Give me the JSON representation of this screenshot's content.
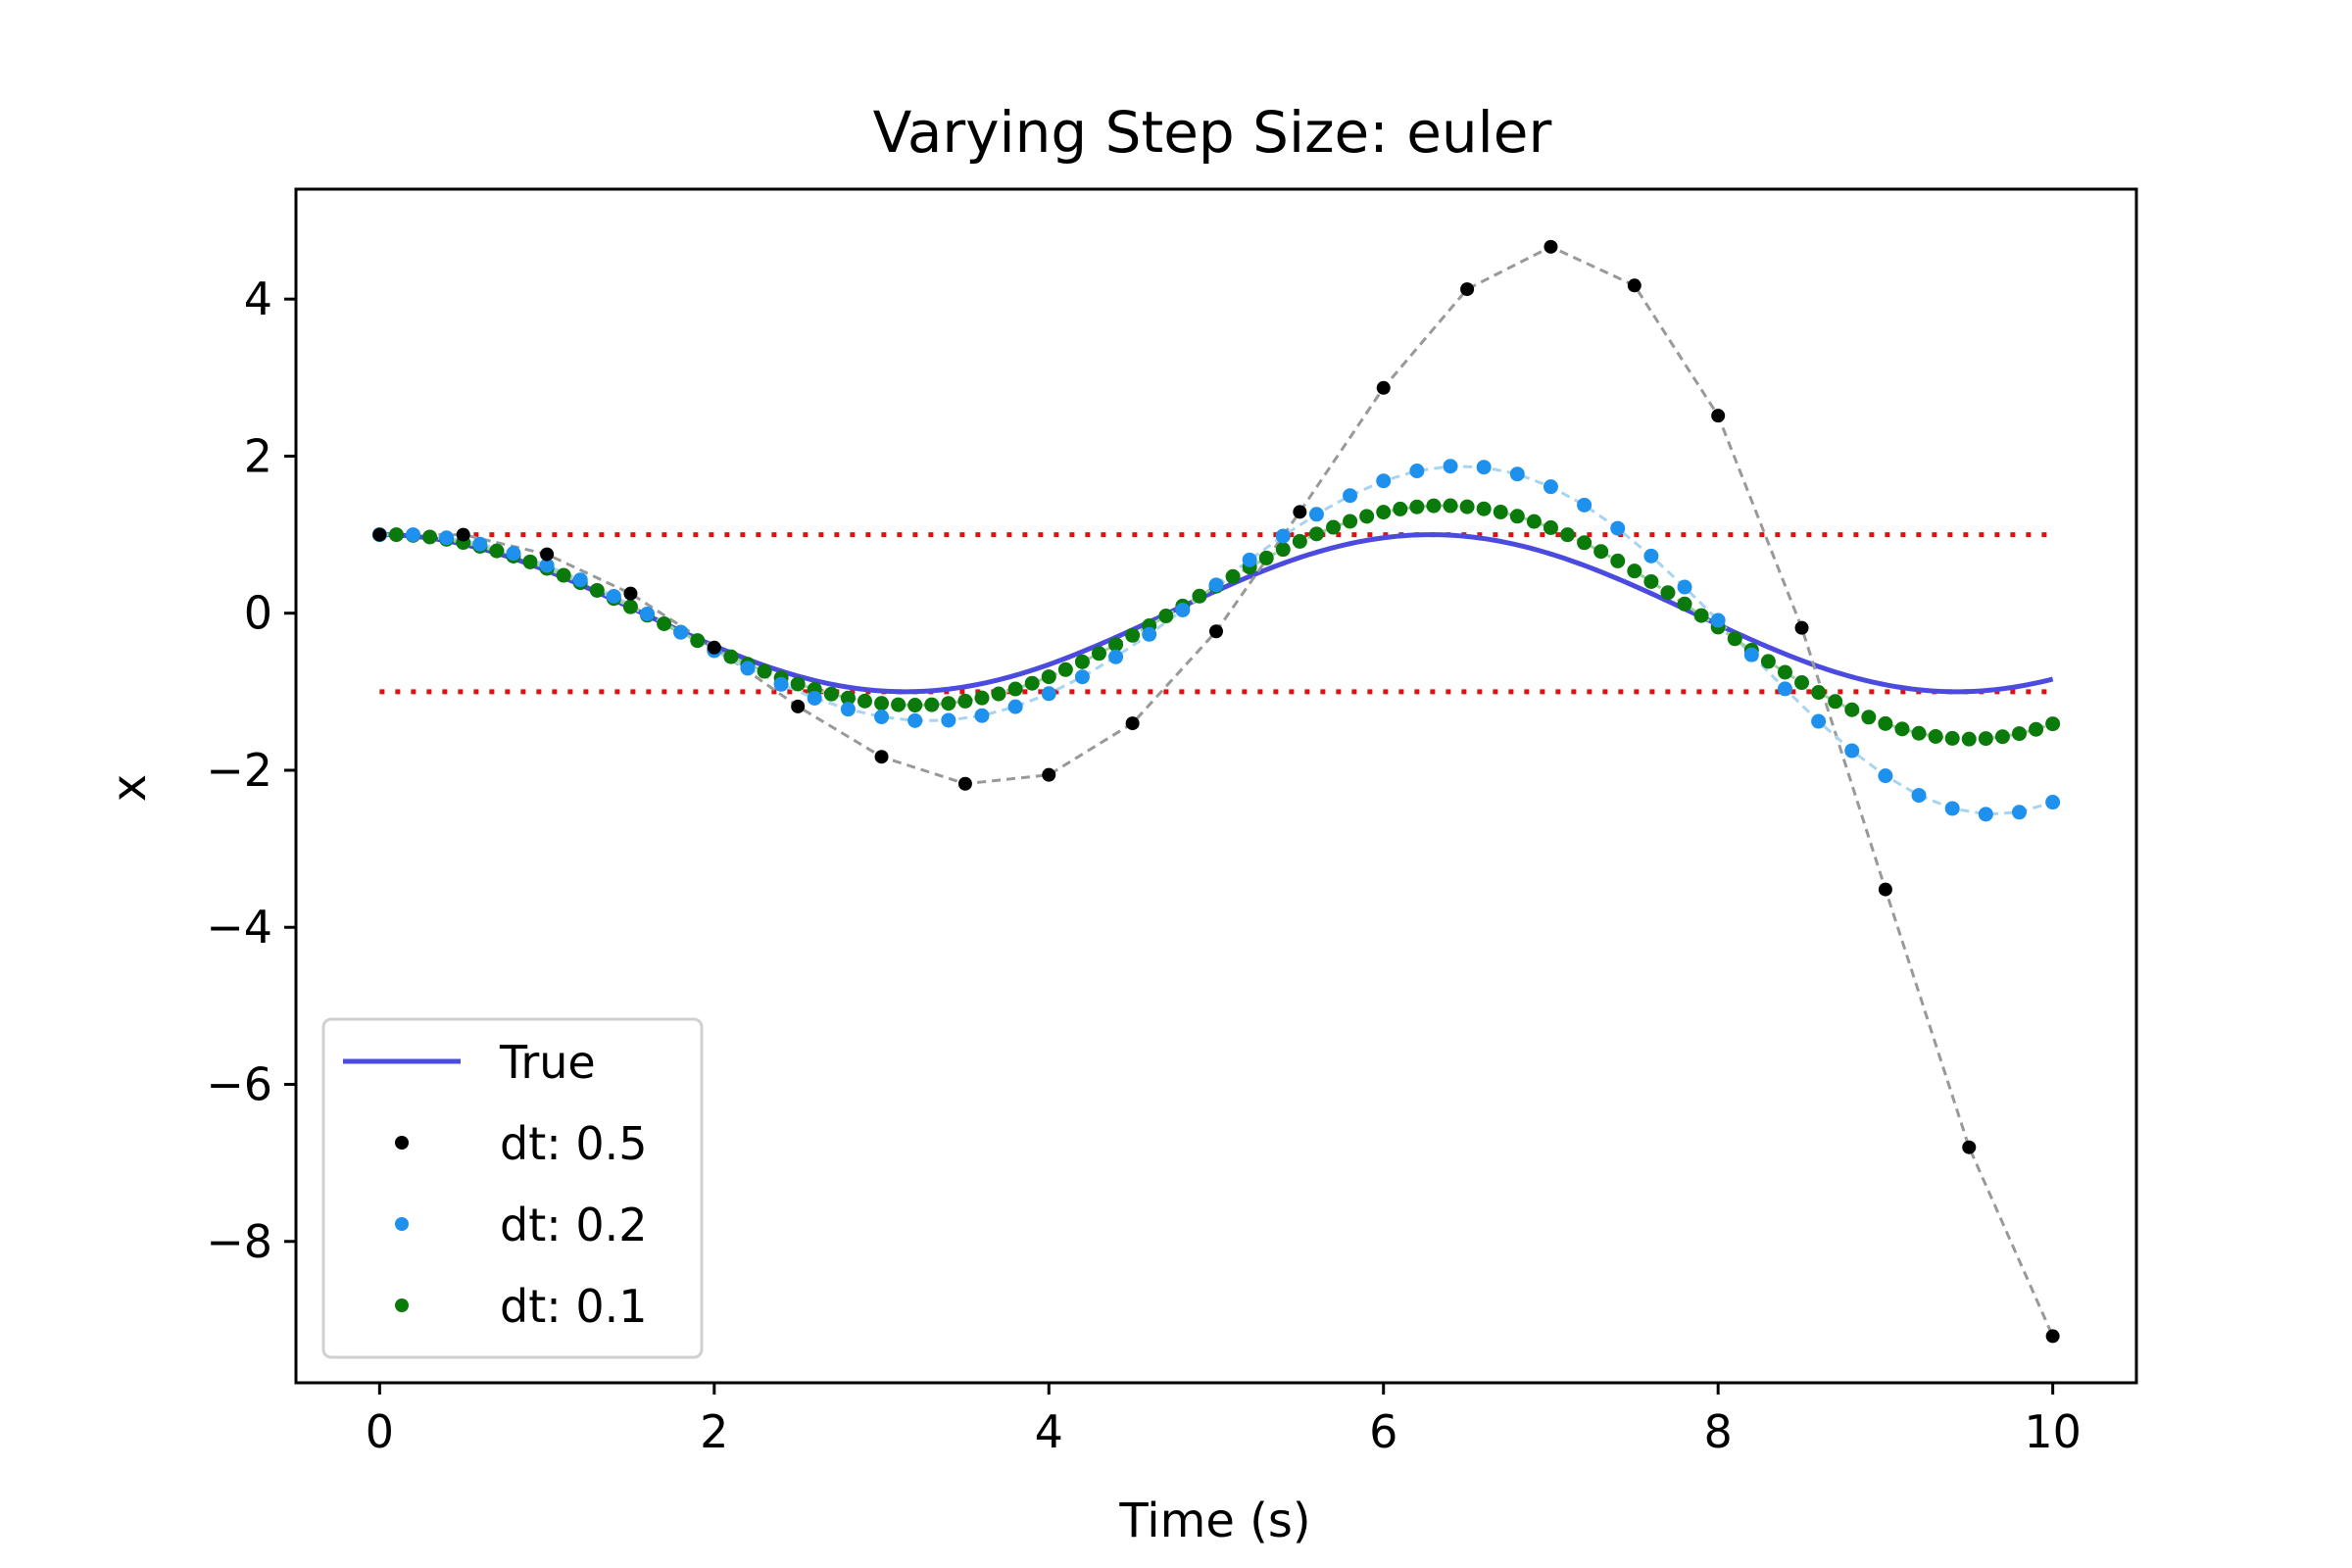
{
  "chart_data": {
    "type": "line",
    "title": "Varying Step Size: euler",
    "xlabel": "Time (s)",
    "ylabel": "x",
    "xlim": [
      -0.5,
      10.5
    ],
    "ylim": [
      -9.8,
      5.4
    ],
    "xticks": [
      0,
      2,
      4,
      6,
      8,
      10
    ],
    "xtick_labels": [
      "0",
      "2",
      "4",
      "6",
      "8",
      "10"
    ],
    "yticks": [
      4,
      2,
      0,
      -2,
      -4,
      -6,
      -8
    ],
    "ytick_labels": [
      "4",
      "2",
      "0",
      "−2",
      "−4",
      "−6",
      "−8"
    ],
    "grid": false,
    "legend_position": "lower-left",
    "reference_lines": [
      {
        "y": 1,
        "color": "#dd1111",
        "style": "dotted",
        "x_range": [
          0,
          10
        ]
      },
      {
        "y": -1,
        "color": "#dd1111",
        "style": "dotted",
        "x_range": [
          0,
          10
        ]
      }
    ],
    "series": [
      {
        "name": "True",
        "type": "line",
        "function": "cos(t)",
        "x_range": [
          0,
          10
        ],
        "color": "#4b4be0"
      },
      {
        "name": "dt: 0.5",
        "type": "scatter",
        "dt": 0.5,
        "color": "#000000",
        "connector_color": "#999999"
      },
      {
        "name": "dt: 0.2",
        "type": "scatter",
        "dt": 0.2,
        "color": "#1e90ee",
        "connector_color": "#a8d4f0"
      },
      {
        "name": "dt: 0.1",
        "type": "scatter",
        "dt": 0.1,
        "color": "#0a7a0a",
        "connector_color": "#9fcf9f"
      }
    ]
  }
}
